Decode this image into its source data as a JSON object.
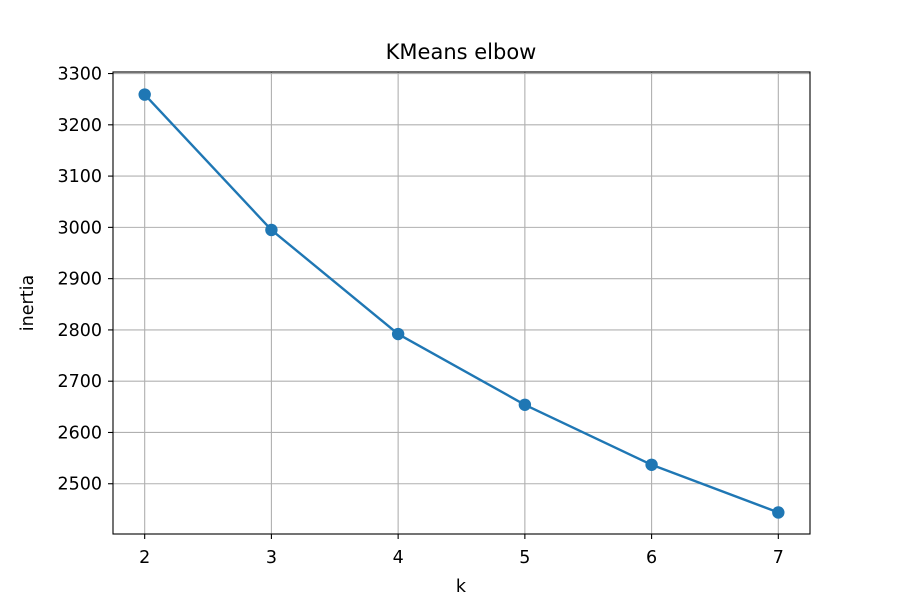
{
  "chart_data": {
    "type": "line",
    "title": "KMeans elbow",
    "xlabel": "k",
    "ylabel": "inertia",
    "x": [
      2,
      3,
      4,
      5,
      6,
      7
    ],
    "series": [
      {
        "values": [
          3259,
          2995,
          2792,
          2654,
          2537,
          2444
        ],
        "color": "#1f77b4",
        "marker": "circle"
      }
    ],
    "xlim": [
      1.75,
      7.25
    ],
    "ylim": [
      2402,
      3303
    ],
    "xticks": [
      2,
      3,
      4,
      5,
      6,
      7
    ],
    "yticks": [
      2500,
      2600,
      2700,
      2800,
      2900,
      3000,
      3100,
      3200,
      3300
    ],
    "grid": true
  }
}
